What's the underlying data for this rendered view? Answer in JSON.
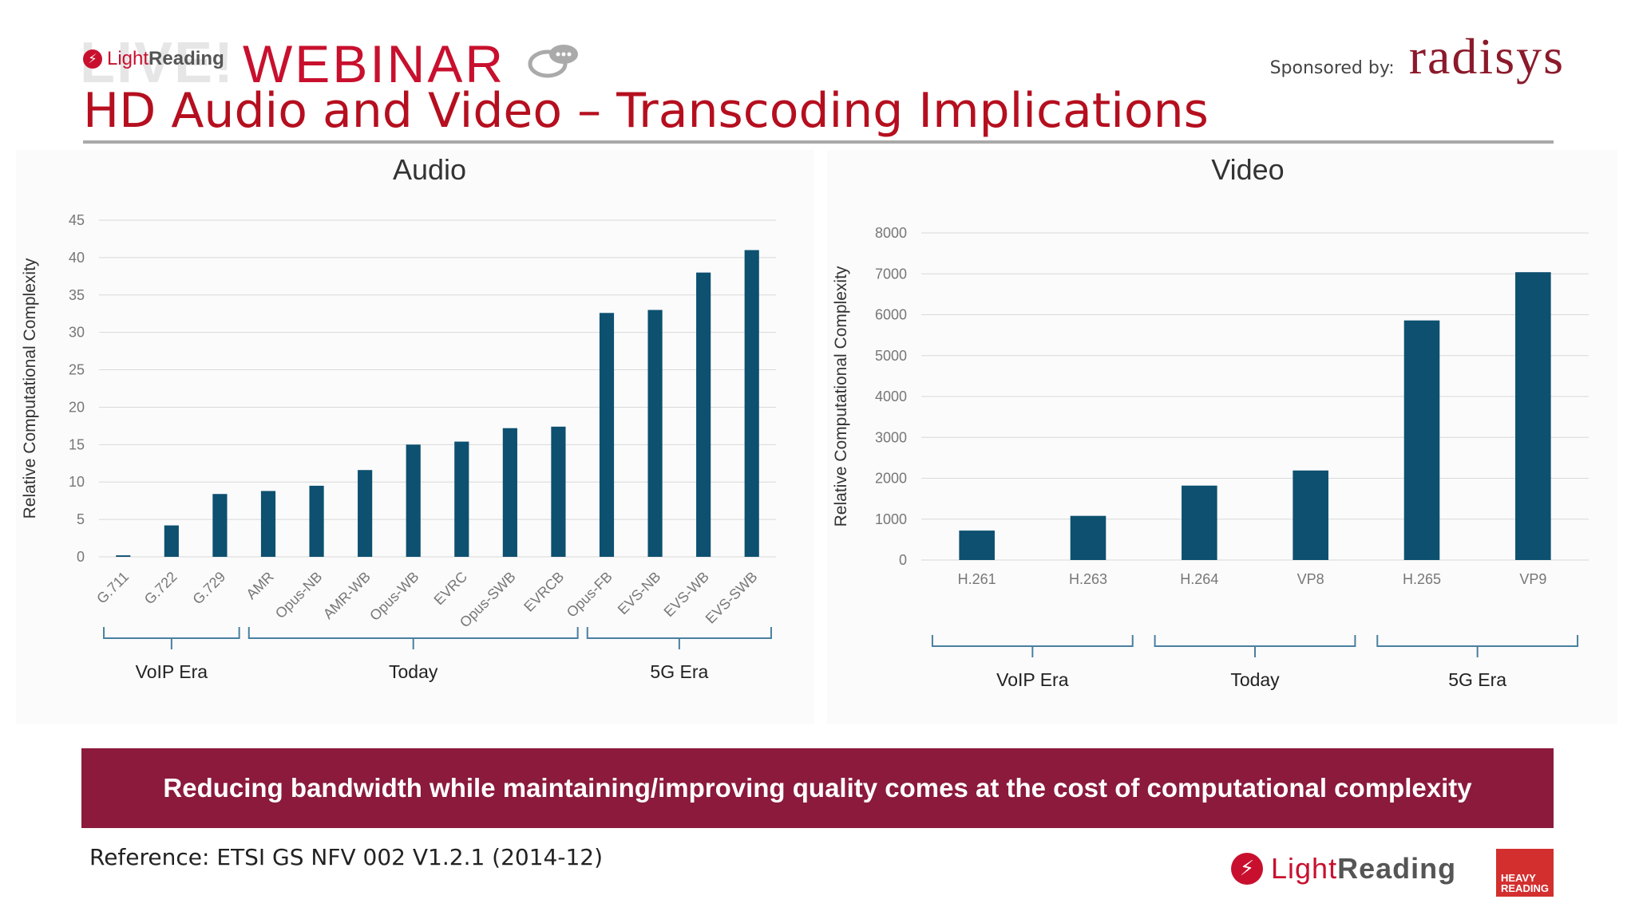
{
  "header": {
    "brand_small": "LightReading",
    "live_ghost": "LIVE!",
    "webinar": "WEBINAR",
    "sponsor_label": "Sponsored by:",
    "sponsor_name": "radisys"
  },
  "title": "HD Audio and Video – Transcoding Implications",
  "banner": "Reducing bandwidth while maintaining/improving quality comes at the cost of computational complexity",
  "reference": "Reference: ETSI GS NFV 002 V1.2.1 (2014-12)",
  "footer": {
    "brand": "LightReading",
    "partner": "HEAVY READING"
  },
  "colors": {
    "bar": "#0d5070",
    "title": "#b50f1f",
    "banner": "#8b1a3d",
    "grid": "#d9d9d9"
  },
  "chart_data": [
    {
      "type": "bar",
      "title": "Audio",
      "ylabel": "Relative Computational Complexity",
      "xlabel": "",
      "ylim": [
        0,
        45
      ],
      "yticks": [
        0,
        5,
        10,
        15,
        20,
        25,
        30,
        35,
        40,
        45
      ],
      "grid": true,
      "categories": [
        "G.711",
        "G.722",
        "G.729",
        "AMR",
        "Opus-NB",
        "AMR-WB",
        "Opus-WB",
        "EVRC",
        "Opus-SWB",
        "EVRCB",
        "Opus-FB",
        "EVS-NB",
        "EVS-WB",
        "EVS-SWB"
      ],
      "values": [
        0.2,
        4.2,
        8.4,
        8.8,
        9.5,
        11.6,
        15.0,
        15.4,
        17.2,
        17.4,
        32.6,
        33.0,
        38.0,
        41.0
      ],
      "groups": [
        {
          "label": "VoIP Era",
          "from": 0,
          "to": 2
        },
        {
          "label": "Today",
          "from": 3,
          "to": 9
        },
        {
          "label": "5G Era",
          "from": 10,
          "to": 13
        }
      ]
    },
    {
      "type": "bar",
      "title": "Video",
      "ylabel": "Relative Computational Complexity",
      "xlabel": "",
      "ylim": [
        0,
        8000
      ],
      "yticks": [
        0,
        1000,
        2000,
        3000,
        4000,
        5000,
        6000,
        7000,
        8000
      ],
      "grid": true,
      "categories": [
        "H.261",
        "H.263",
        "H.264",
        "VP8",
        "H.265",
        "VP9"
      ],
      "values": [
        720,
        1080,
        1820,
        2190,
        5860,
        7040
      ],
      "groups": [
        {
          "label": "VoIP Era",
          "from": 0,
          "to": 1
        },
        {
          "label": "Today",
          "from": 2,
          "to": 3
        },
        {
          "label": "5G Era",
          "from": 4,
          "to": 5
        }
      ]
    }
  ]
}
